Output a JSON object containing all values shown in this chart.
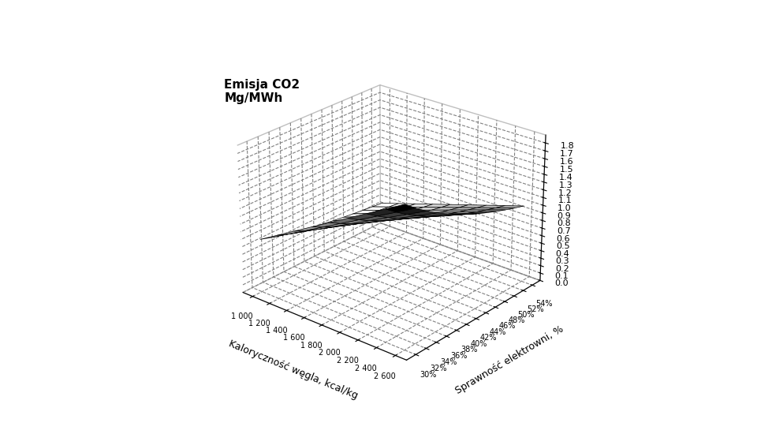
{
  "title_z": "Emisja CO2\nMg/MWh",
  "xlabel": "Kaloryczność węgla, kcal/kg",
  "ylabel": "Sprawność elektrowni, %",
  "zlabel": "Emisja CO2\nMg/MWh",
  "calorific_values": [
    1000,
    1200,
    1400,
    1600,
    1800,
    2000,
    2200,
    2400,
    2600
  ],
  "efficiency_values": [
    30,
    32,
    34,
    36,
    38,
    40,
    42,
    44,
    46,
    48,
    50,
    52,
    54
  ],
  "zlim": [
    0.0,
    1.9
  ],
  "zticks": [
    0.0,
    0.1,
    0.2,
    0.3,
    0.4,
    0.5,
    0.6,
    0.7,
    0.8,
    0.9,
    1.0,
    1.1,
    1.2,
    1.3,
    1.4,
    1.5,
    1.6,
    1.7,
    1.8
  ],
  "co2_emission_factor": 0.2016,
  "background_color": "#ffffff",
  "surface_cmap_colors": [
    "#000000",
    "#404040",
    "#808080",
    "#b0b0b0",
    "#d0d0d0",
    "#ffffff"
  ],
  "elev": 25,
  "azim": -50,
  "figure_width": 9.6,
  "figure_height": 5.5
}
